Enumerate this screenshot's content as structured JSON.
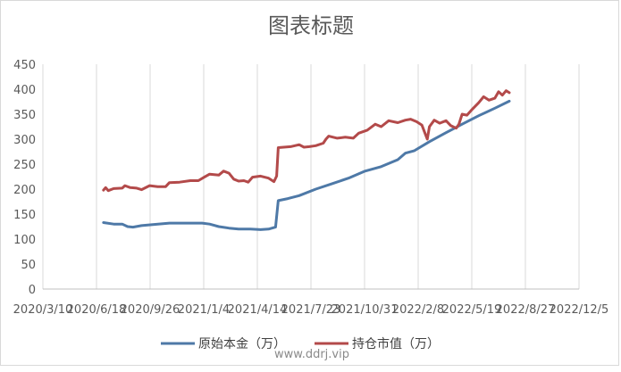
{
  "chart_data": {
    "type": "line",
    "title": "图表标题",
    "xlabel": "",
    "ylabel": "",
    "ylim": [
      0,
      450
    ],
    "y_ticks": [
      "0",
      "50",
      "100",
      "150",
      "200",
      "250",
      "300",
      "350",
      "400",
      "450"
    ],
    "x_ticks": [
      "2020/3/10",
      "2020/6/18",
      "2020/9/26",
      "2021/1/4",
      "2021/4/14",
      "2021/7/23",
      "2021/10/31",
      "2022/2/8",
      "2022/5/19",
      "2022/8/27",
      "2022/12/5"
    ],
    "xlim": [
      "2020-03-10",
      "2022-12-05"
    ],
    "grid": "vertical",
    "legend_position": "bottom",
    "series": [
      {
        "name": "原始本金（万）",
        "color": "#4e79a7",
        "points": [
          [
            "2020-07-01",
            133
          ],
          [
            "2020-07-20",
            130
          ],
          [
            "2020-08-05",
            130
          ],
          [
            "2020-08-15",
            125
          ],
          [
            "2020-08-25",
            124
          ],
          [
            "2020-09-10",
            127
          ],
          [
            "2020-10-01",
            129
          ],
          [
            "2020-11-01",
            132
          ],
          [
            "2020-12-01",
            132
          ],
          [
            "2021-01-01",
            132
          ],
          [
            "2021-01-15",
            130
          ],
          [
            "2021-02-01",
            125
          ],
          [
            "2021-02-20",
            122
          ],
          [
            "2021-03-10",
            120
          ],
          [
            "2021-04-01",
            120
          ],
          [
            "2021-04-20",
            119
          ],
          [
            "2021-05-05",
            120
          ],
          [
            "2021-05-18",
            124
          ],
          [
            "2021-05-23",
            177
          ],
          [
            "2021-06-10",
            181
          ],
          [
            "2021-07-01",
            187
          ],
          [
            "2021-08-01",
            200
          ],
          [
            "2021-09-01",
            211
          ],
          [
            "2021-10-01",
            222
          ],
          [
            "2021-11-01",
            236
          ],
          [
            "2021-12-01",
            245
          ],
          [
            "2022-01-01",
            259
          ],
          [
            "2022-01-15",
            272
          ],
          [
            "2022-02-01",
            277
          ],
          [
            "2022-03-01",
            295
          ],
          [
            "2022-04-01",
            313
          ],
          [
            "2022-05-01",
            330
          ],
          [
            "2022-06-01",
            347
          ],
          [
            "2022-07-01",
            362
          ],
          [
            "2022-07-28",
            376
          ]
        ]
      },
      {
        "name": "持仓市值（万）",
        "color": "#b34a4a",
        "points": [
          [
            "2020-07-01",
            198
          ],
          [
            "2020-07-05",
            203
          ],
          [
            "2020-07-10",
            197
          ],
          [
            "2020-07-20",
            201
          ],
          [
            "2020-08-05",
            202
          ],
          [
            "2020-08-10",
            207
          ],
          [
            "2020-08-20",
            203
          ],
          [
            "2020-09-01",
            202
          ],
          [
            "2020-09-10",
            199
          ],
          [
            "2020-09-25",
            207
          ],
          [
            "2020-10-10",
            205
          ],
          [
            "2020-10-25",
            205
          ],
          [
            "2020-11-01",
            213
          ],
          [
            "2020-11-20",
            214
          ],
          [
            "2020-12-10",
            217
          ],
          [
            "2020-12-25",
            217
          ],
          [
            "2021-01-05",
            224
          ],
          [
            "2021-01-15",
            230
          ],
          [
            "2021-02-01",
            228
          ],
          [
            "2021-02-10",
            236
          ],
          [
            "2021-02-20",
            232
          ],
          [
            "2021-03-01",
            220
          ],
          [
            "2021-03-10",
            216
          ],
          [
            "2021-03-20",
            217
          ],
          [
            "2021-03-28",
            214
          ],
          [
            "2021-04-05",
            224
          ],
          [
            "2021-04-20",
            226
          ],
          [
            "2021-05-05",
            222
          ],
          [
            "2021-05-15",
            215
          ],
          [
            "2021-05-20",
            226
          ],
          [
            "2021-05-23",
            283
          ],
          [
            "2021-06-15",
            285
          ],
          [
            "2021-07-01",
            289
          ],
          [
            "2021-07-10",
            284
          ],
          [
            "2021-07-20",
            285
          ],
          [
            "2021-08-01",
            287
          ],
          [
            "2021-08-15",
            292
          ],
          [
            "2021-08-20",
            300
          ],
          [
            "2021-08-25",
            306
          ],
          [
            "2021-09-10",
            302
          ],
          [
            "2021-09-25",
            304
          ],
          [
            "2021-10-10",
            302
          ],
          [
            "2021-10-20",
            312
          ],
          [
            "2021-11-05",
            318
          ],
          [
            "2021-11-20",
            330
          ],
          [
            "2021-12-01",
            325
          ],
          [
            "2021-12-15",
            337
          ],
          [
            "2022-01-01",
            333
          ],
          [
            "2022-01-15",
            338
          ],
          [
            "2022-01-25",
            340
          ],
          [
            "2022-02-05",
            335
          ],
          [
            "2022-02-15",
            328
          ],
          [
            "2022-02-20",
            314
          ],
          [
            "2022-02-25",
            300
          ],
          [
            "2022-03-01",
            325
          ],
          [
            "2022-03-10",
            338
          ],
          [
            "2022-03-20",
            332
          ],
          [
            "2022-04-01",
            337
          ],
          [
            "2022-04-10",
            327
          ],
          [
            "2022-04-20",
            322
          ],
          [
            "2022-04-25",
            330
          ],
          [
            "2022-05-01",
            350
          ],
          [
            "2022-05-10",
            348
          ],
          [
            "2022-05-20",
            360
          ],
          [
            "2022-06-01",
            373
          ],
          [
            "2022-06-10",
            385
          ],
          [
            "2022-06-20",
            378
          ],
          [
            "2022-07-01",
            382
          ],
          [
            "2022-07-08",
            395
          ],
          [
            "2022-07-15",
            388
          ],
          [
            "2022-07-22",
            397
          ],
          [
            "2022-07-28",
            393
          ]
        ]
      }
    ]
  },
  "watermark": "www.ddrj.vip"
}
